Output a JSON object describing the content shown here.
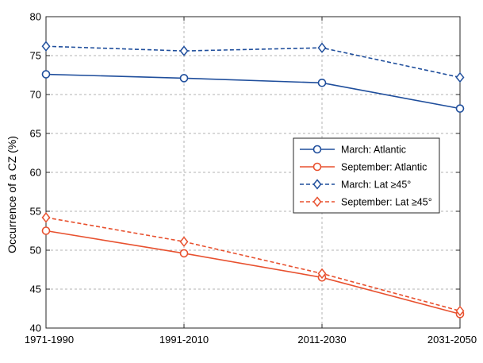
{
  "chart_data": {
    "type": "line",
    "title": "",
    "xlabel": "",
    "ylabel": "Occurrence of a CZ (%)",
    "categories": [
      "1971-1990",
      "1991-2010",
      "2011-2030",
      "2031-2050"
    ],
    "ylim": [
      40,
      80
    ],
    "yticks": [
      40,
      45,
      50,
      55,
      60,
      65,
      70,
      75,
      80
    ],
    "grid": true,
    "legend_position": "center-right",
    "series": [
      {
        "name": "March: Atlantic",
        "values": [
          72.6,
          72.1,
          71.5,
          68.2
        ],
        "color": "#1f4e9c",
        "dash": "solid",
        "marker": "circle"
      },
      {
        "name": "September: Atlantic",
        "values": [
          52.5,
          49.6,
          46.5,
          41.8
        ],
        "color": "#e8512f",
        "dash": "solid",
        "marker": "circle"
      },
      {
        "name": "March: Lat ≥45°",
        "values": [
          76.2,
          75.6,
          76.0,
          72.2
        ],
        "color": "#1f4e9c",
        "dash": "dashed",
        "marker": "diamond"
      },
      {
        "name": "September: Lat ≥45°",
        "values": [
          54.2,
          51.1,
          47.0,
          42.2
        ],
        "color": "#e8512f",
        "dash": "dashed",
        "marker": "diamond"
      }
    ]
  }
}
